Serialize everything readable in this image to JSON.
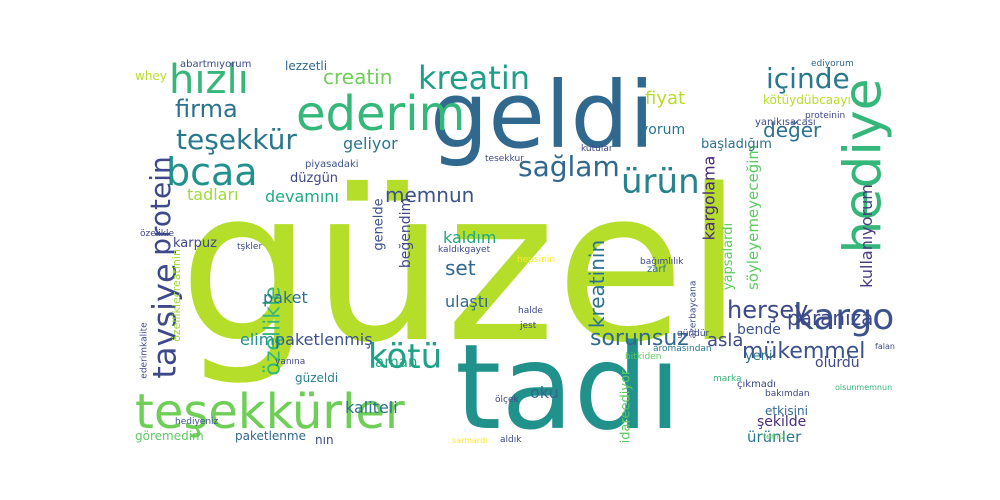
{
  "words": [
    {
      "text": "güzel",
      "color": "#b5de2b"
    },
    {
      "text": "tadı",
      "color": "#21918c"
    },
    {
      "text": "geldi",
      "color": "#31688e"
    },
    {
      "text": "hediye",
      "color": "#35b779"
    },
    {
      "text": "teşekkürler",
      "color": "#6ece58"
    },
    {
      "text": "ederim",
      "color": "#35b779"
    },
    {
      "text": "kargo",
      "color": "#3b528b"
    },
    {
      "text": "hızlı",
      "color": "#35b779"
    },
    {
      "text": "bcaa",
      "color": "#21918c"
    },
    {
      "text": "kreatin",
      "color": "#1f9e89"
    },
    {
      "text": "teşekkür",
      "color": "#2a788e"
    },
    {
      "text": "ürün",
      "color": "#26828e"
    },
    {
      "text": "tavsiye",
      "color": "#3e4989"
    },
    {
      "text": "protein",
      "color": "#3e4989"
    },
    {
      "text": "kötü",
      "color": "#1fa187"
    },
    {
      "text": "içinde",
      "color": "#2a788e"
    },
    {
      "text": "sağlam",
      "color": "#31688e"
    },
    {
      "text": "firma",
      "color": "#2c728e"
    },
    {
      "text": "creatin",
      "color": "#6ece58"
    },
    {
      "text": "herşey",
      "color": "#3e4989"
    },
    {
      "text": "mükemmel",
      "color": "#3b528b"
    },
    {
      "text": "sorunsuz",
      "color": "#31688e"
    },
    {
      "text": "paranıza",
      "color": "#3e4989"
    },
    {
      "text": "özellikle",
      "color": "#35b779"
    },
    {
      "text": "değer",
      "color": "#2c728e"
    },
    {
      "text": "kreatinin",
      "color": "#2c728e"
    },
    {
      "text": "kullanıyorum",
      "color": "#443a83"
    },
    {
      "text": "memnun",
      "color": "#3b528b"
    },
    {
      "text": "set",
      "color": "#31688e"
    },
    {
      "text": "geliyor",
      "color": "#2a788e"
    },
    {
      "text": "tadları",
      "color": "#9fda3a"
    },
    {
      "text": "devamını",
      "color": "#22a884"
    },
    {
      "text": "fiyat",
      "color": "#b5de2b"
    },
    {
      "text": "yorum",
      "color": "#2a788e"
    },
    {
      "text": "kargolama",
      "color": "#482878"
    },
    {
      "text": "söyleyemeyeceğim",
      "color": "#5ec962"
    },
    {
      "text": "kötüydübcaayı",
      "color": "#b5de2b"
    },
    {
      "text": "başladığım",
      "color": "#2c728e"
    },
    {
      "text": "ulaştı",
      "color": "#31688e"
    },
    {
      "text": "aman",
      "color": "#22a884"
    },
    {
      "text": "asla",
      "color": "#3e4989"
    },
    {
      "text": "şekilde",
      "color": "#472c7a"
    },
    {
      "text": "paketlenmiş",
      "color": "#3b528b"
    },
    {
      "text": "güzeldi",
      "color": "#26828e"
    },
    {
      "text": "kaliteli",
      "color": "#2c728e"
    },
    {
      "text": "ürünler",
      "color": "#2a788e"
    },
    {
      "text": "elime",
      "color": "#21918c"
    },
    {
      "text": "oku",
      "color": "#31688e"
    },
    {
      "text": "paket",
      "color": "#2c728e"
    },
    {
      "text": "kaldım",
      "color": "#22a884"
    },
    {
      "text": "beğendim",
      "color": "#3e4989"
    },
    {
      "text": "genelde",
      "color": "#3b528b"
    },
    {
      "text": "karpuz",
      "color": "#3e4989"
    },
    {
      "text": "yapsalardı",
      "color": "#5ec962"
    },
    {
      "text": "bende",
      "color": "#3b528b"
    },
    {
      "text": "olurdu",
      "color": "#3e4989"
    },
    {
      "text": "yeni",
      "color": "#2a788e"
    },
    {
      "text": "etkisini",
      "color": "#31688e"
    },
    {
      "text": "idareediyor",
      "color": "#5ec962"
    },
    {
      "text": "lezzetli",
      "color": "#31688e"
    },
    {
      "text": "whey",
      "color": "#b5de2b"
    },
    {
      "text": "göremedim",
      "color": "#5ec962"
    },
    {
      "text": "paketlenme",
      "color": "#31688e"
    },
    {
      "text": "nın",
      "color": "#3e4989"
    },
    {
      "text": "düzgün",
      "color": "#3e4989"
    },
    {
      "text": "özelliklecreatinin",
      "color": "#9fda3a"
    },
    {
      "text": "yanikısacası",
      "color": "#3e4989"
    },
    {
      "text": "abartmıyorum",
      "color": "#3e4989"
    },
    {
      "text": "piyasadaki",
      "color": "#3b528b"
    },
    {
      "text": "bitkiden",
      "color": "#5ec962"
    },
    {
      "text": "zarf",
      "color": "#2c728e"
    },
    {
      "text": "hediyeniz",
      "color": "#3b528b"
    },
    {
      "text": "aromasından",
      "color": "#2a788e"
    },
    {
      "text": "çıkmadı",
      "color": "#3e4989"
    },
    {
      "text": "marka",
      "color": "#35b779"
    },
    {
      "text": "bakımdan",
      "color": "#3e4989"
    },
    {
      "text": "temiz",
      "color": "#5ec962"
    },
    {
      "text": "ediyorum",
      "color": "#31688e"
    },
    {
      "text": "falan",
      "color": "#3e4989"
    },
    {
      "text": "olsunmemnun",
      "color": "#35b779"
    },
    {
      "text": "hepsinin",
      "color": "#fde725"
    },
    {
      "text": "sarmardı",
      "color": "#fde725"
    },
    {
      "text": "tşkler",
      "color": "#3e4989"
    },
    {
      "text": "ederimkalite",
      "color": "#3e4989"
    },
    {
      "text": "gündür",
      "color": "#3e4989"
    },
    {
      "text": "aldık",
      "color": "#3e4989"
    },
    {
      "text": "kaldıkgayet",
      "color": "#3e4989"
    },
    {
      "text": "özelikle",
      "color": "#3e4989"
    },
    {
      "text": "ölçek",
      "color": "#3e4989"
    },
    {
      "text": "yanına",
      "color": "#3e4989"
    },
    {
      "text": "bağımlılık",
      "color": "#3e4989"
    },
    {
      "text": "tesekkur",
      "color": "#3e4989"
    },
    {
      "text": "kutular",
      "color": "#3e4989"
    },
    {
      "text": "halde",
      "color": "#3e4989"
    },
    {
      "text": "jest",
      "color": "#3e4989"
    },
    {
      "text": "azerbaycana",
      "color": "#3e4989"
    },
    {
      "text": "proteinin",
      "color": "#3e4989"
    }
  ]
}
